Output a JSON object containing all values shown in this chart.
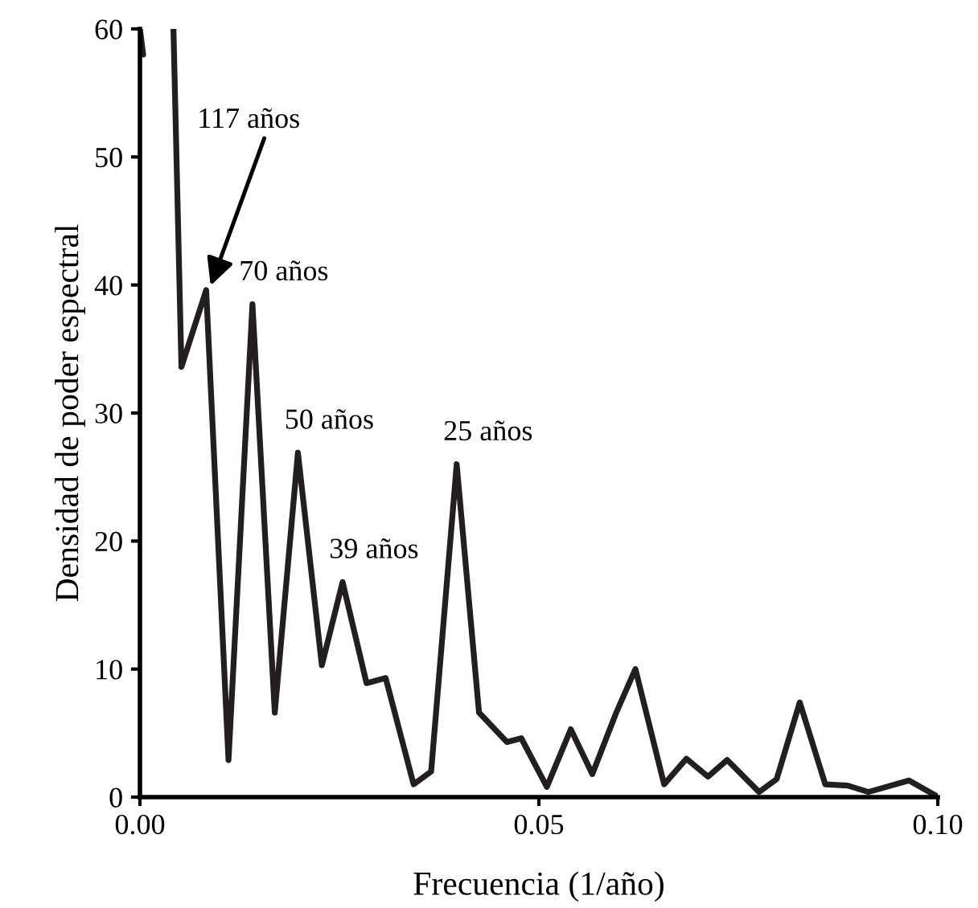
{
  "chart_data": {
    "type": "line",
    "xlabel": "Frecuencia (1/año)",
    "ylabel": "Densidad de poder espectral",
    "xlim": [
      0,
      0.1
    ],
    "ylim": [
      0,
      60
    ],
    "xticks": [
      {
        "value": 0,
        "label": "0.00"
      },
      {
        "value": 0.05,
        "label": "0.05"
      },
      {
        "value": 0.1,
        "label": "0.10"
      }
    ],
    "yticks": [
      0,
      10,
      20,
      30,
      40,
      50,
      60
    ],
    "grid": false,
    "legend": false,
    "marker": "none",
    "line_style": "solid",
    "series": [
      {
        "color": "#231f20",
        "x": [
          0.0,
          0.0004,
          0.002,
          0.0042,
          0.0052,
          0.0083,
          0.0111,
          0.0141,
          0.0169,
          0.0198,
          0.0228,
          0.0254,
          0.0284,
          0.0308,
          0.0343,
          0.0365,
          0.0397,
          0.0425,
          0.046,
          0.0478,
          0.051,
          0.054,
          0.0567,
          0.0597,
          0.0621,
          0.0657,
          0.0685,
          0.0712,
          0.0736,
          0.0776,
          0.0798,
          0.0827,
          0.0859,
          0.0887,
          0.0913,
          0.0964,
          0.0998
        ],
        "values": [
          60,
          58,
          null,
          60,
          33.6,
          39.6,
          2.9,
          38.5,
          6.6,
          26.9,
          10.3,
          16.8,
          8.9,
          9.3,
          1.0,
          2.0,
          26.0,
          6.6,
          4.3,
          4.6,
          0.8,
          5.3,
          1.8,
          6.6,
          10.0,
          1.0,
          3.0,
          1.6,
          2.9,
          0.4,
          1.4,
          7.4,
          1.0,
          0.9,
          0.4,
          1.3,
          0.1
        ]
      }
    ],
    "annotations": [
      {
        "text": "117 años",
        "x": 0.0083,
        "y": 39.6
      },
      {
        "text": "70 años",
        "x": 0.0141,
        "y": 38.5
      },
      {
        "text": "50 años",
        "x": 0.0198,
        "y": 26.9
      },
      {
        "text": "39 años",
        "x": 0.0254,
        "y": 16.8
      },
      {
        "text": "25 años",
        "x": 0.0397,
        "y": 26.0
      }
    ]
  }
}
